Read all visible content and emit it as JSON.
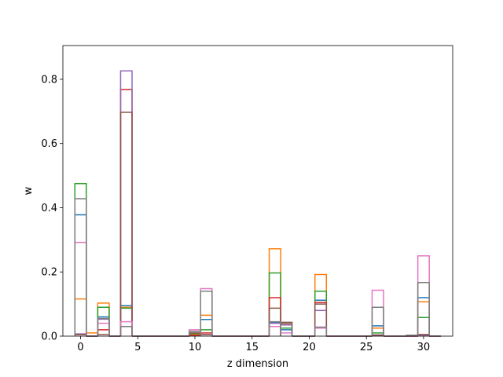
{
  "chart_data": {
    "type": "step",
    "title": "",
    "xlabel": "z dimension",
    "ylabel": "w",
    "xlim": [
      -1.55,
      32.55
    ],
    "ylim": [
      0,
      0.905
    ],
    "xticks": [
      0,
      5,
      10,
      15,
      20,
      25,
      30
    ],
    "yticks": [
      0.0,
      0.2,
      0.4,
      0.6,
      0.8
    ],
    "ytick_labels": [
      "0.0",
      "0.2",
      "0.4",
      "0.6",
      "0.8"
    ],
    "grid": false,
    "legend": false,
    "x": [
      0,
      1,
      2,
      3,
      4,
      5,
      6,
      7,
      8,
      9,
      10,
      11,
      12,
      13,
      14,
      15,
      16,
      17,
      18,
      19,
      20,
      21,
      22,
      23,
      24,
      25,
      26,
      27,
      28,
      29,
      30,
      31
    ],
    "series": [
      {
        "color": "#1f77b4",
        "values": [
          0.378,
          0,
          0.06,
          0,
          0.095,
          0,
          0,
          0,
          0,
          0,
          0.005,
          0.052,
          0,
          0,
          0,
          0,
          0,
          0.043,
          0.02,
          0,
          0,
          0.112,
          0,
          0,
          0,
          0,
          0.032,
          0,
          0,
          0,
          0.12,
          0
        ]
      },
      {
        "color": "#ff7f0e",
        "values": [
          0.116,
          0.01,
          0.103,
          0,
          0.09,
          0,
          0,
          0,
          0,
          0,
          0.005,
          0.065,
          0,
          0,
          0,
          0,
          0,
          0.272,
          0.037,
          0,
          0,
          0.192,
          0,
          0,
          0,
          0,
          0.025,
          0,
          0,
          0,
          0.107,
          0
        ]
      },
      {
        "color": "#2ca02c",
        "values": [
          0.475,
          0,
          0.09,
          0,
          0.087,
          0,
          0,
          0,
          0,
          0,
          0.008,
          0.02,
          0,
          0,
          0,
          0,
          0,
          0.197,
          0.025,
          0,
          0,
          0.14,
          0,
          0,
          0,
          0,
          0.01,
          0,
          0,
          0,
          0.058,
          0
        ]
      },
      {
        "color": "#d62728",
        "values": [
          0.005,
          0,
          0.02,
          0,
          0.768,
          0,
          0,
          0,
          0,
          0,
          0.003,
          0.01,
          0,
          0,
          0,
          0,
          0,
          0.12,
          0.04,
          0,
          0,
          0.105,
          0,
          0,
          0,
          0,
          0.002,
          0,
          0,
          0,
          0.005,
          0
        ]
      },
      {
        "color": "#9467bd",
        "values": [
          0.007,
          0,
          0.053,
          0,
          0.826,
          0,
          0,
          0,
          0,
          0,
          0.015,
          0.005,
          0,
          0,
          0,
          0,
          0,
          0.04,
          0.035,
          0,
          0,
          0.08,
          0,
          0,
          0,
          0,
          0.004,
          0,
          0,
          0,
          0.003,
          0
        ]
      },
      {
        "color": "#8c564b",
        "values": [
          0.005,
          0,
          0.005,
          0,
          0.697,
          0,
          0,
          0,
          0,
          0,
          0.01,
          0.005,
          0,
          0,
          0,
          0,
          0,
          0.087,
          0.043,
          0,
          0,
          0.1,
          0,
          0,
          0,
          0,
          0.003,
          0,
          0,
          0,
          0.005,
          0
        ]
      },
      {
        "color": "#e377c2",
        "values": [
          0.292,
          0,
          0.04,
          0,
          0.045,
          0,
          0,
          0,
          0,
          0,
          0.02,
          0.148,
          0,
          0,
          0,
          0,
          0,
          0.03,
          0.01,
          0,
          0,
          0.025,
          0,
          0,
          0,
          0,
          0.143,
          0,
          0,
          0,
          0.25,
          0
        ]
      },
      {
        "color": "#7f7f7f",
        "values": [
          0.428,
          0,
          0.055,
          0,
          0.03,
          0,
          0,
          0,
          0,
          0,
          0.015,
          0.14,
          0,
          0,
          0,
          0,
          0,
          0.045,
          0.04,
          0,
          0,
          0.028,
          0,
          0,
          0,
          0,
          0.09,
          0,
          0,
          0.003,
          0.167,
          0
        ]
      }
    ]
  }
}
